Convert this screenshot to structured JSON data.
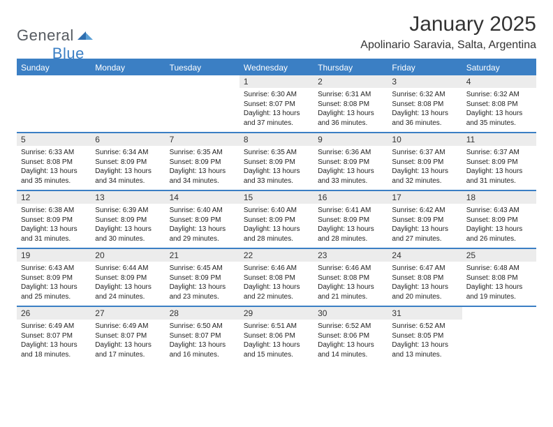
{
  "brand": {
    "general": "General",
    "blue": "Blue"
  },
  "title": "January 2025",
  "location": "Apolinario Saravia, Salta, Argentina",
  "colors": {
    "accent": "#3b7fc4",
    "header_text": "#ffffff",
    "daynum_bg": "#ececec",
    "body_text": "#222222",
    "background": "#ffffff"
  },
  "weekdays": [
    "Sunday",
    "Monday",
    "Tuesday",
    "Wednesday",
    "Thursday",
    "Friday",
    "Saturday"
  ],
  "weeks": [
    [
      {
        "n": "",
        "sr": "",
        "ss": "",
        "dl": ""
      },
      {
        "n": "",
        "sr": "",
        "ss": "",
        "dl": ""
      },
      {
        "n": "",
        "sr": "",
        "ss": "",
        "dl": ""
      },
      {
        "n": "1",
        "sr": "6:30 AM",
        "ss": "8:07 PM",
        "dl": "13 hours and 37 minutes."
      },
      {
        "n": "2",
        "sr": "6:31 AM",
        "ss": "8:08 PM",
        "dl": "13 hours and 36 minutes."
      },
      {
        "n": "3",
        "sr": "6:32 AM",
        "ss": "8:08 PM",
        "dl": "13 hours and 36 minutes."
      },
      {
        "n": "4",
        "sr": "6:32 AM",
        "ss": "8:08 PM",
        "dl": "13 hours and 35 minutes."
      }
    ],
    [
      {
        "n": "5",
        "sr": "6:33 AM",
        "ss": "8:08 PM",
        "dl": "13 hours and 35 minutes."
      },
      {
        "n": "6",
        "sr": "6:34 AM",
        "ss": "8:09 PM",
        "dl": "13 hours and 34 minutes."
      },
      {
        "n": "7",
        "sr": "6:35 AM",
        "ss": "8:09 PM",
        "dl": "13 hours and 34 minutes."
      },
      {
        "n": "8",
        "sr": "6:35 AM",
        "ss": "8:09 PM",
        "dl": "13 hours and 33 minutes."
      },
      {
        "n": "9",
        "sr": "6:36 AM",
        "ss": "8:09 PM",
        "dl": "13 hours and 33 minutes."
      },
      {
        "n": "10",
        "sr": "6:37 AM",
        "ss": "8:09 PM",
        "dl": "13 hours and 32 minutes."
      },
      {
        "n": "11",
        "sr": "6:37 AM",
        "ss": "8:09 PM",
        "dl": "13 hours and 31 minutes."
      }
    ],
    [
      {
        "n": "12",
        "sr": "6:38 AM",
        "ss": "8:09 PM",
        "dl": "13 hours and 31 minutes."
      },
      {
        "n": "13",
        "sr": "6:39 AM",
        "ss": "8:09 PM",
        "dl": "13 hours and 30 minutes."
      },
      {
        "n": "14",
        "sr": "6:40 AM",
        "ss": "8:09 PM",
        "dl": "13 hours and 29 minutes."
      },
      {
        "n": "15",
        "sr": "6:40 AM",
        "ss": "8:09 PM",
        "dl": "13 hours and 28 minutes."
      },
      {
        "n": "16",
        "sr": "6:41 AM",
        "ss": "8:09 PM",
        "dl": "13 hours and 28 minutes."
      },
      {
        "n": "17",
        "sr": "6:42 AM",
        "ss": "8:09 PM",
        "dl": "13 hours and 27 minutes."
      },
      {
        "n": "18",
        "sr": "6:43 AM",
        "ss": "8:09 PM",
        "dl": "13 hours and 26 minutes."
      }
    ],
    [
      {
        "n": "19",
        "sr": "6:43 AM",
        "ss": "8:09 PM",
        "dl": "13 hours and 25 minutes."
      },
      {
        "n": "20",
        "sr": "6:44 AM",
        "ss": "8:09 PM",
        "dl": "13 hours and 24 minutes."
      },
      {
        "n": "21",
        "sr": "6:45 AM",
        "ss": "8:09 PM",
        "dl": "13 hours and 23 minutes."
      },
      {
        "n": "22",
        "sr": "6:46 AM",
        "ss": "8:08 PM",
        "dl": "13 hours and 22 minutes."
      },
      {
        "n": "23",
        "sr": "6:46 AM",
        "ss": "8:08 PM",
        "dl": "13 hours and 21 minutes."
      },
      {
        "n": "24",
        "sr": "6:47 AM",
        "ss": "8:08 PM",
        "dl": "13 hours and 20 minutes."
      },
      {
        "n": "25",
        "sr": "6:48 AM",
        "ss": "8:08 PM",
        "dl": "13 hours and 19 minutes."
      }
    ],
    [
      {
        "n": "26",
        "sr": "6:49 AM",
        "ss": "8:07 PM",
        "dl": "13 hours and 18 minutes."
      },
      {
        "n": "27",
        "sr": "6:49 AM",
        "ss": "8:07 PM",
        "dl": "13 hours and 17 minutes."
      },
      {
        "n": "28",
        "sr": "6:50 AM",
        "ss": "8:07 PM",
        "dl": "13 hours and 16 minutes."
      },
      {
        "n": "29",
        "sr": "6:51 AM",
        "ss": "8:06 PM",
        "dl": "13 hours and 15 minutes."
      },
      {
        "n": "30",
        "sr": "6:52 AM",
        "ss": "8:06 PM",
        "dl": "13 hours and 14 minutes."
      },
      {
        "n": "31",
        "sr": "6:52 AM",
        "ss": "8:05 PM",
        "dl": "13 hours and 13 minutes."
      },
      {
        "n": "",
        "sr": "",
        "ss": "",
        "dl": ""
      }
    ]
  ],
  "labels": {
    "sunrise": "Sunrise:",
    "sunset": "Sunset:",
    "daylight": "Daylight:"
  }
}
